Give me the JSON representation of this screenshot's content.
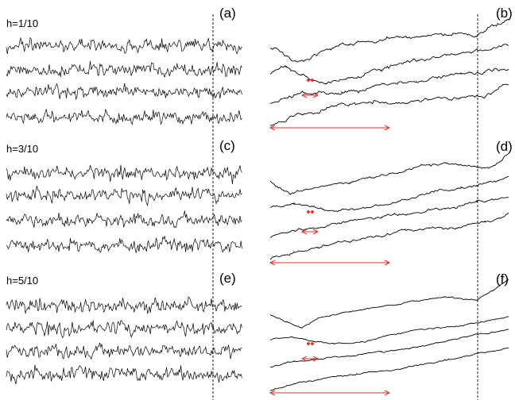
{
  "panels": [
    {
      "id": "a",
      "label": "(a)",
      "side": "left",
      "h_label": "h=1/10",
      "h": 0.1
    },
    {
      "id": "b",
      "label": "(b)",
      "side": "right",
      "smooth_order": 1
    },
    {
      "id": "c",
      "label": "(c)",
      "side": "left",
      "h_label": "h=3/10",
      "h": 0.3
    },
    {
      "id": "d",
      "label": "(d)",
      "side": "right",
      "smooth_order": 2
    },
    {
      "id": "e",
      "label": "(e)",
      "side": "left",
      "h_label": "h=5/10",
      "h": 0.5
    },
    {
      "id": "f",
      "label": "(f)",
      "side": "right",
      "smooth_order": 3
    }
  ],
  "colors": {
    "trace": "#000000",
    "scale_arrow": "#e03030",
    "marker": "#e03030",
    "divider": "#000000"
  },
  "traces_per_panel": 4
}
